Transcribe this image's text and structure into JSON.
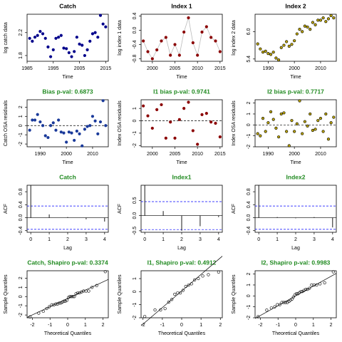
{
  "chart_data": [
    {
      "type": "scatter",
      "title": "Catch",
      "title_color": "#000000",
      "xlabel": "Time",
      "ylabel": "log catch data",
      "x": [
        1986,
        1987,
        1988,
        1989,
        1990,
        1991,
        1992,
        1993,
        1994,
        1995,
        1996,
        1997,
        1998,
        1999,
        2000,
        2001,
        2002,
        2003,
        2004,
        2005,
        2006,
        2007,
        2008,
        2009,
        2010,
        2011,
        2012,
        2013,
        2014,
        2015
      ],
      "values": [
        2.1,
        2.05,
        2.12,
        2.15,
        2.22,
        2.18,
        2.1,
        1.95,
        1.78,
        1.9,
        2.1,
        2.12,
        2.15,
        1.93,
        1.92,
        1.85,
        1.78,
        1.87,
        2.12,
        2.0,
        1.98,
        1.8,
        1.9,
        2.05,
        2.18,
        2.2,
        2.12,
        2.5,
        2.35,
        2.3
      ],
      "xlim": [
        1985,
        2016
      ],
      "xticks": [
        1985,
        1995,
        2005,
        2015
      ],
      "ylim": [
        1.7,
        2.52
      ],
      "yticks": [
        1.8,
        2.2
      ],
      "color": "#00008b",
      "edge_color": "#00008b"
    },
    {
      "type": "line",
      "title": "Index 1",
      "title_color": "#000000",
      "xlabel": "Time",
      "ylabel": "log index 1 data",
      "x": [
        1998,
        1999,
        2000,
        2001,
        2002,
        2003,
        2004,
        2005,
        2006,
        2007,
        2008,
        2009,
        2010,
        2011,
        2012,
        2013,
        2014,
        2015
      ],
      "values": [
        -0.3,
        -0.6,
        -0.8,
        -0.55,
        -0.3,
        -0.2,
        -0.7,
        -0.4,
        -0.7,
        -0.05,
        0.35,
        -0.35,
        -0.7,
        -0.05,
        0.1,
        -0.2,
        -0.3,
        -0.6
      ],
      "xlim": [
        1997.5,
        2015.5
      ],
      "xticks": [
        2000,
        2005,
        2010,
        2015
      ],
      "ylim": [
        -0.87,
        0.45
      ],
      "yticks": [
        -0.8,
        -0.4,
        {
          "value": 0,
          "label": "0.0"
        },
        0.4
      ],
      "color": "#8b0000",
      "edge_color": "#8b0000",
      "line_color": "#bbbbbb"
    },
    {
      "type": "scatter",
      "title": "Index 2",
      "title_color": "#000000",
      "xlabel": "Time",
      "ylabel": "log index 2 data",
      "x": [
        1986,
        1987,
        1988,
        1989,
        1990,
        1991,
        1992,
        1993,
        1994,
        1995,
        1996,
        1997,
        1998,
        1999,
        2000,
        2001,
        2002,
        2003,
        2004,
        2005,
        2006,
        2007,
        2008,
        2009,
        2010,
        2011,
        2012,
        2013,
        2014,
        2015
      ],
      "values": [
        5.73,
        5.62,
        5.55,
        5.57,
        5.52,
        5.5,
        5.55,
        5.42,
        5.38,
        5.65,
        5.7,
        5.78,
        5.68,
        5.72,
        5.8,
        5.95,
        6.05,
        6.0,
        6.12,
        6.1,
        6.05,
        6.2,
        6.15,
        6.25,
        6.25,
        6.3,
        6.22,
        6.28,
        6.35,
        6.3
      ],
      "xlim": [
        1985,
        2016
      ],
      "xticks": [
        1990,
        2000,
        2010
      ],
      "ylim": [
        5.35,
        6.38
      ],
      "yticks": [
        5.4,
        {
          "value": 6,
          "label": "6.0"
        }
      ],
      "color": "#b8a100",
      "edge_color": "#000000"
    },
    {
      "type": "scatter",
      "title": "Bias p-val: 0.6873",
      "title_color": "#228b22",
      "xlabel": "Time",
      "ylabel": "Catch OSA residuals",
      "x": [
        1986,
        1987,
        1988,
        1989,
        1990,
        1991,
        1992,
        1993,
        1994,
        1995,
        1996,
        1997,
        1998,
        1999,
        2000,
        2001,
        2002,
        2003,
        2004,
        2005,
        2006,
        2007,
        2008,
        2009,
        2010,
        2011,
        2012,
        2013,
        2014,
        2015
      ],
      "values": [
        -0.5,
        0.6,
        0.6,
        1.2,
        0.4,
        0.0,
        -1.1,
        -1.3,
        0.0,
        0.3,
        -0.5,
        0.6,
        -0.7,
        -0.8,
        -1.8,
        -0.7,
        -0.8,
        -1.6,
        -0.6,
        -0.9,
        -2.2,
        -0.4,
        -0.1,
        0.0,
        1.0,
        0.5,
        -0.9,
        0.4,
        2.7,
        0.0
      ],
      "xlim": [
        1985,
        2016
      ],
      "xticks": [
        1990,
        2000,
        2010
      ],
      "ylim": [
        -2.3,
        2.8
      ],
      "yticks": [
        -2,
        -1,
        0,
        1,
        2
      ],
      "refline": 0,
      "color": "#1a3a9a",
      "edge_color": "#1a3a9a"
    },
    {
      "type": "scatter",
      "title": "I1 bias p-val: 0.9741",
      "title_color": "#228b22",
      "xlabel": "Time",
      "ylabel": "Index OSA residuals",
      "x": [
        1998,
        1999,
        2000,
        2001,
        2002,
        2003,
        2004,
        2005,
        2006,
        2007,
        2008,
        2009,
        2010,
        2011,
        2012,
        2013,
        2014,
        2015
      ],
      "values": [
        1.2,
        0.4,
        -0.6,
        0.9,
        1.3,
        -1.4,
        -0.1,
        -1.4,
        0.1,
        1.0,
        1.5,
        -0.8,
        -1.9,
        0.5,
        0.6,
        -0.1,
        -0.2,
        -1.3
      ],
      "xlim": [
        1997.5,
        2015.5
      ],
      "xticks": [
        2000,
        2005,
        2010,
        2015
      ],
      "ylim": [
        -2.1,
        1.7
      ],
      "yticks": [
        -2,
        -1,
        0,
        1
      ],
      "refline": 0,
      "color": "#8b0000",
      "edge_color": "#8b0000"
    },
    {
      "type": "scatter",
      "title": "I2 bias p-val: 0.7717",
      "title_color": "#228b22",
      "xlabel": "Time",
      "ylabel": "Index OSA residuals",
      "x": [
        1986,
        1987,
        1988,
        1989,
        1990,
        1991,
        1992,
        1993,
        1994,
        1995,
        1996,
        1997,
        1998,
        1999,
        2000,
        2001,
        2002,
        2003,
        2004,
        2005,
        2006,
        2007,
        2008,
        2009,
        2010,
        2011,
        2012,
        2013,
        2014,
        2015
      ],
      "values": [
        -0.8,
        -1.0,
        0.6,
        -0.6,
        0.2,
        1.2,
        0.5,
        -0.3,
        -1.1,
        1.0,
        1.1,
        -0.6,
        -1.9,
        0.4,
        -0.6,
        0.1,
        2.2,
        -0.8,
        0.3,
        -0.1,
        1.0,
        -0.5,
        -0.4,
        0.4,
        0.6,
        -0.6,
        1.0,
        -1.3,
        0.2,
        0.7
      ],
      "xlim": [
        1985,
        2016
      ],
      "xticks": [
        1990,
        2000,
        2010
      ],
      "ylim": [
        -2.0,
        2.3
      ],
      "yticks": [
        -2,
        -1,
        0,
        1,
        2
      ],
      "refline": 0,
      "color": "#b8a100",
      "edge_color": "#000000"
    },
    {
      "type": "bar",
      "title": "Catch",
      "title_color": "#228b22",
      "xlabel": "Lag",
      "ylabel": "ACF",
      "x": [
        0,
        1,
        2,
        3,
        4
      ],
      "values": [
        1,
        0.1,
        0.02,
        -0.05,
        -0.12
      ],
      "ci": [
        -0.36,
        0.36
      ],
      "xlim": [
        -0.2,
        4.2
      ],
      "xticks": [
        0,
        1,
        2,
        3,
        4
      ],
      "ylim": [
        -0.45,
        1.0
      ],
      "yticks": [
        -0.4,
        {
          "value": 0,
          "label": "0.0"
        },
        0.4,
        0.8
      ]
    },
    {
      "type": "bar",
      "title": "Index1",
      "title_color": "#228b22",
      "xlabel": "Lag",
      "ylabel": "ACF",
      "x": [
        0,
        1,
        2,
        3,
        4
      ],
      "values": [
        1,
        0.15,
        -0.5,
        -0.35,
        -0.05
      ],
      "ci": [
        -0.46,
        0.46
      ],
      "xlim": [
        -0.2,
        4.2
      ],
      "xticks": [
        0,
        1,
        2,
        3,
        4
      ],
      "ylim": [
        -0.55,
        1.0
      ],
      "yticks": [
        -0.5,
        {
          "value": 0,
          "label": "0.0"
        },
        0.5
      ]
    },
    {
      "type": "bar",
      "title": "Index2",
      "title_color": "#228b22",
      "xlabel": "Lag",
      "ylabel": "ACF",
      "x": [
        0,
        1,
        2,
        3,
        4
      ],
      "values": [
        1,
        0.02,
        -0.02,
        0.02,
        -0.3
      ],
      "ci": [
        -0.36,
        0.36
      ],
      "xlim": [
        -0.2,
        4.2
      ],
      "xticks": [
        0,
        1,
        2,
        3,
        4
      ],
      "ylim": [
        -0.45,
        1.0
      ],
      "yticks": [
        -0.4,
        {
          "value": 0,
          "label": "0.0"
        },
        0.4,
        0.8
      ]
    },
    {
      "type": "qq",
      "title": "Catch, Shapiro p-val: 0.3374",
      "title_color": "#228b22",
      "xlabel": "Theoretical Quantiles",
      "ylabel": "Sample Quantiles",
      "x": [
        -2.13,
        -1.64,
        -1.38,
        -1.19,
        -1.04,
        -0.9,
        -0.78,
        -0.67,
        -0.57,
        -0.47,
        -0.38,
        -0.3,
        -0.21,
        -0.13,
        -0.04,
        0.04,
        0.13,
        0.21,
        0.3,
        0.38,
        0.47,
        0.57,
        0.67,
        0.78,
        0.9,
        1.04,
        1.19,
        1.38,
        1.64,
        2.13
      ],
      "values": [
        -2.2,
        -1.8,
        -1.6,
        -1.3,
        -1.1,
        -0.9,
        -0.9,
        -0.8,
        -0.8,
        -0.7,
        -0.7,
        -0.6,
        -0.5,
        -0.5,
        -0.4,
        -0.1,
        0.0,
        0.0,
        0.0,
        0.0,
        0.3,
        0.4,
        0.4,
        0.5,
        0.6,
        0.6,
        0.6,
        1.0,
        1.2,
        2.7
      ],
      "xlim": [
        -2.3,
        2.3
      ],
      "xticks": [
        -2,
        -1,
        0,
        1,
        2
      ],
      "ylim": [
        -2.3,
        2.8
      ],
      "yticks": [
        -2,
        -1,
        0,
        1,
        2
      ]
    },
    {
      "type": "qq",
      "title": "I1, Shapiro p-val: 0.4912",
      "title_color": "#228b22",
      "xlabel": "Theoretical Quantiles",
      "ylabel": "Sample Quantiles",
      "x": [
        -1.91,
        -1.38,
        -1.09,
        -0.86,
        -0.67,
        -0.51,
        -0.36,
        -0.21,
        -0.07,
        0.07,
        0.21,
        0.36,
        0.51,
        0.67,
        0.86,
        1.09,
        1.38,
        1.91
      ],
      "values": [
        -1.9,
        -1.4,
        -1.4,
        -1.3,
        -0.8,
        -0.6,
        -0.2,
        -0.1,
        -0.1,
        0.1,
        0.4,
        0.5,
        0.6,
        0.9,
        1.0,
        1.2,
        1.3,
        1.5
      ],
      "xlim": [
        -2.1,
        2.1
      ],
      "xticks": [
        -2,
        -1,
        0,
        1,
        2
      ],
      "ylim": [
        -2.0,
        1.6
      ],
      "yticks": [
        -2,
        -1,
        0,
        1
      ]
    },
    {
      "type": "qq",
      "title": "I2, Shapiro p-val: 0.9983",
      "title_color": "#228b22",
      "xlabel": "Theoretical Quantiles",
      "ylabel": "Sample Quantiles",
      "x": [
        -2.13,
        -1.64,
        -1.38,
        -1.19,
        -1.04,
        -0.9,
        -0.78,
        -0.67,
        -0.57,
        -0.47,
        -0.38,
        -0.3,
        -0.21,
        -0.13,
        -0.04,
        0.04,
        0.13,
        0.21,
        0.3,
        0.38,
        0.47,
        0.57,
        0.67,
        0.78,
        0.9,
        1.04,
        1.19,
        1.38,
        1.64,
        2.13
      ],
      "values": [
        -1.9,
        -1.3,
        -1.1,
        -1.0,
        -0.8,
        -0.8,
        -0.6,
        -0.6,
        -0.6,
        -0.6,
        -0.5,
        -0.4,
        -0.3,
        -0.1,
        0.1,
        0.2,
        0.2,
        0.3,
        0.4,
        0.4,
        0.5,
        0.6,
        0.6,
        0.7,
        1.0,
        1.0,
        1.0,
        1.1,
        1.2,
        2.2
      ],
      "xlim": [
        -2.3,
        2.3
      ],
      "xticks": [
        -2,
        -1,
        0,
        1,
        2
      ],
      "ylim": [
        -2.0,
        2.3
      ],
      "yticks": [
        -2,
        -1,
        0,
        1,
        2
      ]
    }
  ]
}
